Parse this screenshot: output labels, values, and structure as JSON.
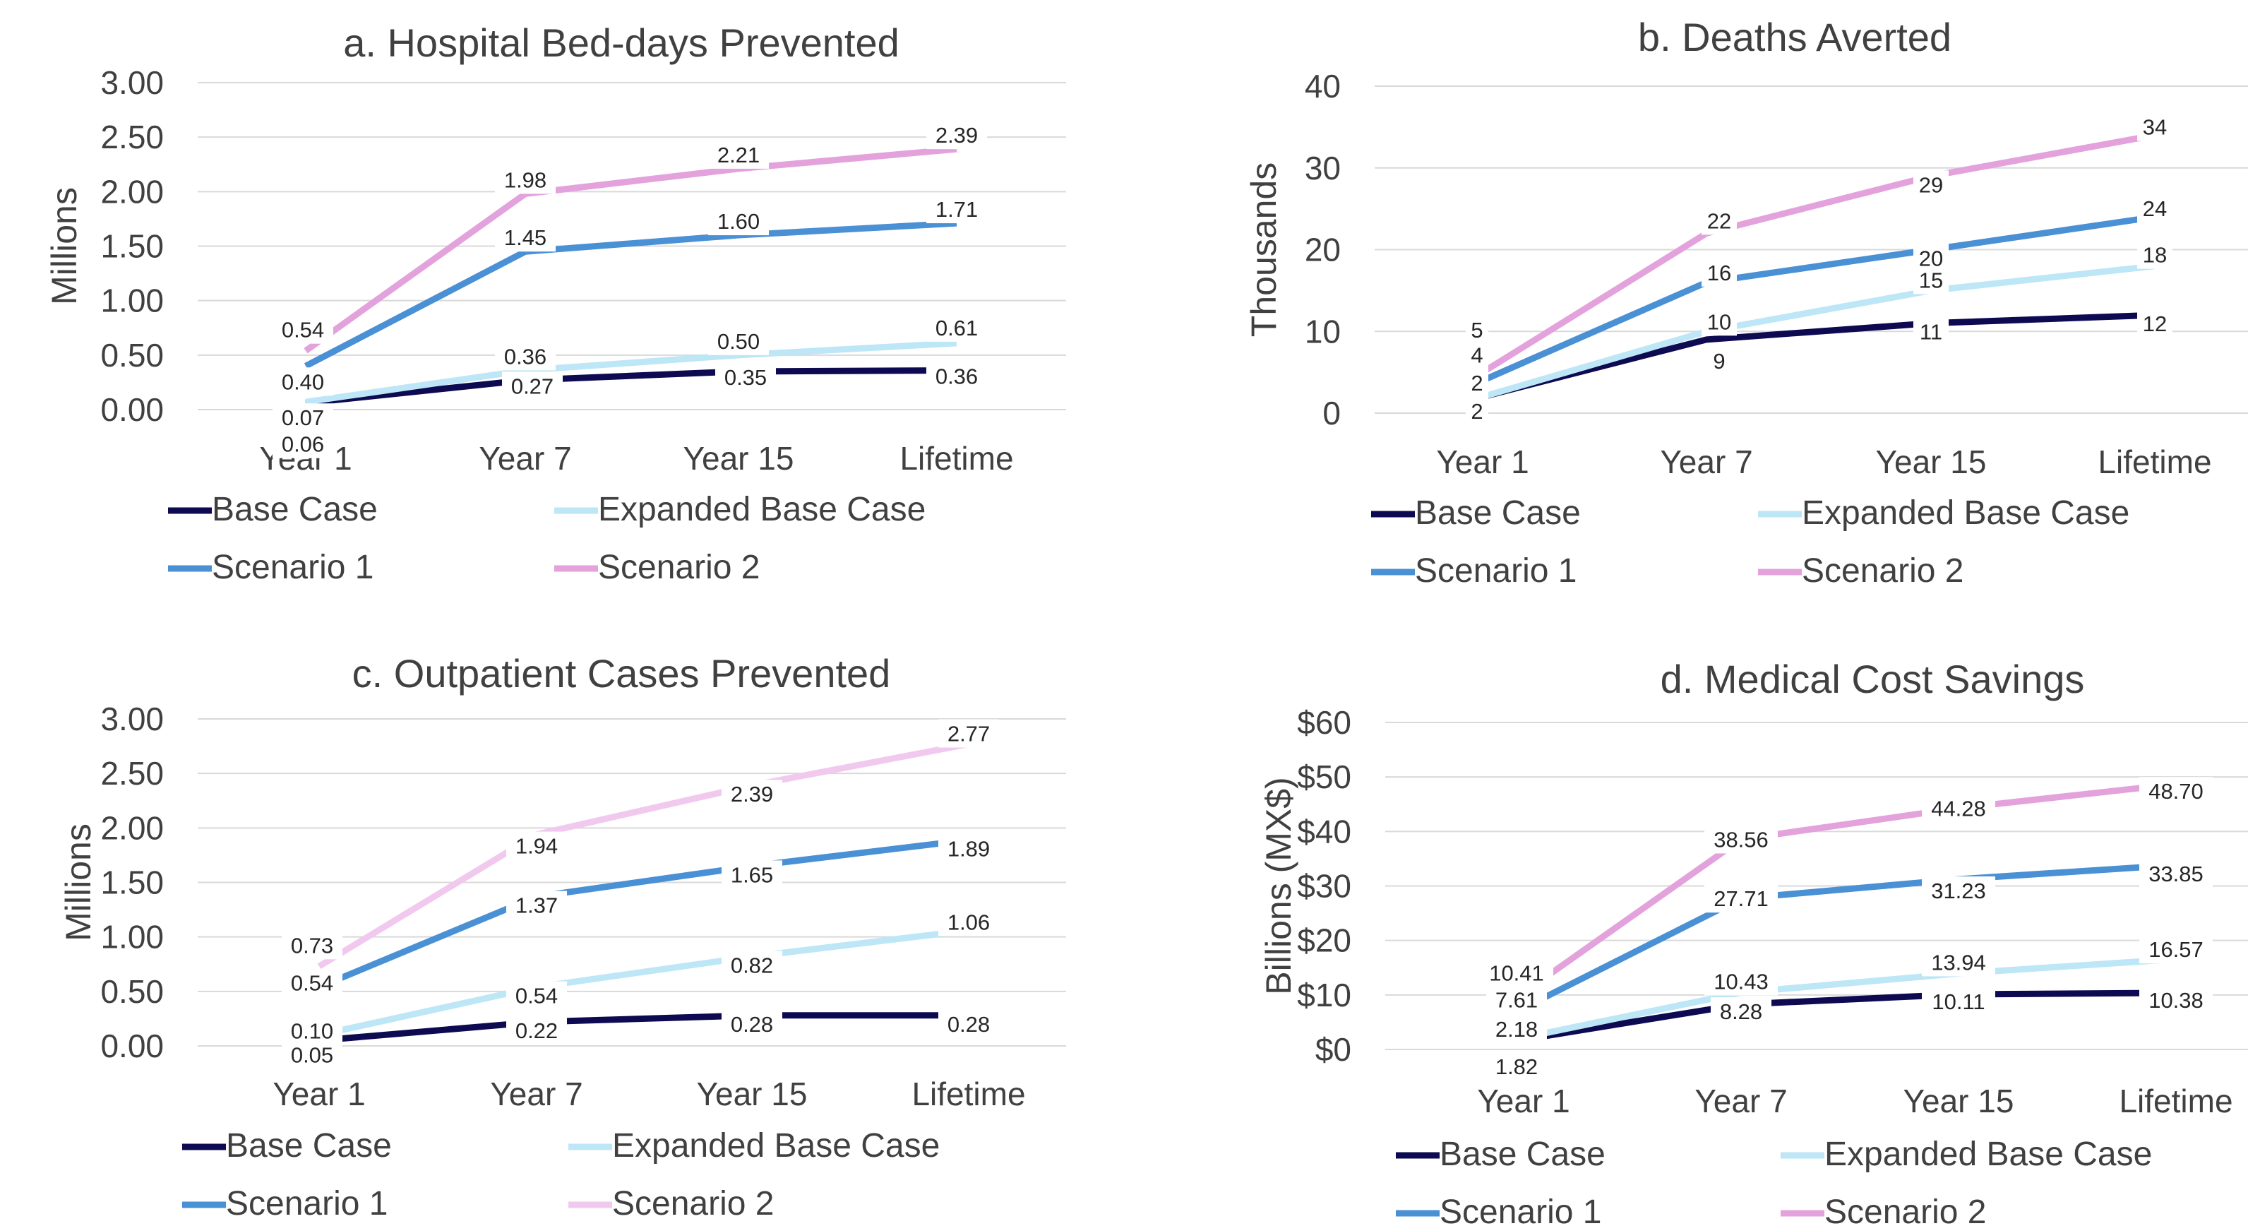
{
  "chart_data": [
    {
      "type": "line",
      "title": "a. Hospital Bed-days Prevented",
      "xlabel": "",
      "ylabel": "Millions",
      "categories": [
        "Year 1",
        "Year 7",
        "Year 15",
        "Lifetime"
      ],
      "yticks": [
        "0.00",
        "0.50",
        "1.00",
        "1.50",
        "2.00",
        "2.50",
        "3.00"
      ],
      "ylim": [
        0,
        3
      ],
      "grid": true,
      "legend": "bottom",
      "series": [
        {
          "name": "Base Case",
          "color": "#0d0a52",
          "values": [
            0.06,
            0.27,
            0.35,
            0.36
          ],
          "labels": [
            "0.06",
            "0.27",
            "0.35",
            "0.36"
          ]
        },
        {
          "name": "Expanded Base Case",
          "color": "#bde6f6",
          "values": [
            0.07,
            0.36,
            0.5,
            0.61
          ],
          "labels": [
            "0.07",
            "0.36",
            "0.50",
            "0.61"
          ]
        },
        {
          "name": "Scenario 1",
          "color": "#4a90d4",
          "values": [
            0.4,
            1.45,
            1.6,
            1.71
          ],
          "labels": [
            "0.40",
            "1.45",
            "1.60",
            "1.71"
          ]
        },
        {
          "name": "Scenario 2",
          "color": "#e3a2dc",
          "values": [
            0.54,
            1.98,
            2.21,
            2.39
          ],
          "labels": [
            "0.54",
            "1.98",
            "2.21",
            "2.39"
          ]
        }
      ]
    },
    {
      "type": "line",
      "title": "b. Deaths Averted",
      "xlabel": "",
      "ylabel": "Thousands",
      "categories": [
        "Year 1",
        "Year 7",
        "Year 15",
        "Lifetime"
      ],
      "yticks": [
        "0",
        "10",
        "20",
        "30",
        "40"
      ],
      "ylim": [
        0,
        40
      ],
      "grid": true,
      "legend": "bottom",
      "series": [
        {
          "name": "Base Case",
          "color": "#0d0a52",
          "values": [
            2,
            9,
            11,
            12
          ],
          "labels": [
            "2",
            "9",
            "11",
            "12"
          ]
        },
        {
          "name": "Expanded Base Case",
          "color": "#bde6f6",
          "values": [
            2,
            10,
            15,
            18
          ],
          "labels": [
            "2",
            "10",
            "15",
            "18"
          ]
        },
        {
          "name": "Scenario 1",
          "color": "#4a90d4",
          "values": [
            4,
            16,
            20,
            24
          ],
          "labels": [
            "4",
            "16",
            "20",
            "24"
          ]
        },
        {
          "name": "Scenario 2",
          "color": "#e3a2dc",
          "values": [
            5,
            22,
            29,
            34
          ],
          "labels": [
            "5",
            "22",
            "29",
            "34"
          ]
        }
      ]
    },
    {
      "type": "line",
      "title": "c. Outpatient Cases Prevented",
      "xlabel": "",
      "ylabel": "Millions",
      "categories": [
        "Year 1",
        "Year 7",
        "Year 15",
        "Lifetime"
      ],
      "yticks": [
        "0.00",
        "0.50",
        "1.00",
        "1.50",
        "2.00",
        "2.50",
        "3.00"
      ],
      "ylim": [
        0,
        3
      ],
      "grid": true,
      "legend": "bottom",
      "series": [
        {
          "name": "Base Case",
          "color": "#0d0a52",
          "values": [
            0.05,
            0.22,
            0.28,
            0.28
          ],
          "labels": [
            "0.05",
            "0.22",
            "0.28",
            "0.28"
          ]
        },
        {
          "name": "Expanded Base Case",
          "color": "#bde6f6",
          "values": [
            0.1,
            0.54,
            0.82,
            1.06
          ],
          "labels": [
            "0.10",
            "0.54",
            "0.82",
            "1.06"
          ]
        },
        {
          "name": "Scenario 1",
          "color": "#4a90d4",
          "values": [
            0.54,
            1.37,
            1.65,
            1.89
          ],
          "labels": [
            "0.54",
            "1.37",
            "1.65",
            "1.89"
          ]
        },
        {
          "name": "Scenario 2",
          "color": "#f2c9ee",
          "values": [
            0.73,
            1.94,
            2.39,
            2.77
          ],
          "labels": [
            "0.73",
            "1.94",
            "2.39",
            "2.77"
          ]
        }
      ]
    },
    {
      "type": "line",
      "title": "d. Medical Cost Savings",
      "xlabel": "",
      "ylabel": "Billions (MX$)",
      "categories": [
        "Year 1",
        "Year 7",
        "Year 15",
        "Lifetime"
      ],
      "yticks": [
        "$0",
        "$10",
        "$20",
        "$30",
        "$40",
        "$50",
        "$60"
      ],
      "ylim": [
        0,
        60
      ],
      "grid": true,
      "legend": "bottom",
      "series": [
        {
          "name": "Base Case",
          "color": "#0d0a52",
          "values": [
            1.82,
            8.28,
            10.11,
            10.38
          ],
          "labels": [
            "1.82",
            "8.28",
            "10.11",
            "10.38"
          ]
        },
        {
          "name": "Expanded Base Case",
          "color": "#bde6f6",
          "values": [
            2.18,
            10.43,
            13.94,
            16.57
          ],
          "labels": [
            "2.18",
            "10.43",
            "13.94",
            "16.57"
          ]
        },
        {
          "name": "Scenario 1",
          "color": "#4a90d4",
          "values": [
            7.61,
            27.71,
            31.23,
            33.85
          ],
          "labels": [
            "7.61",
            "27.71",
            "31.23",
            "33.85"
          ]
        },
        {
          "name": "Scenario 2",
          "color": "#e3a2dc",
          "values": [
            10.41,
            38.56,
            44.28,
            48.7
          ],
          "labels": [
            "10.41",
            "38.56",
            "44.28",
            "48.70"
          ]
        }
      ]
    }
  ]
}
